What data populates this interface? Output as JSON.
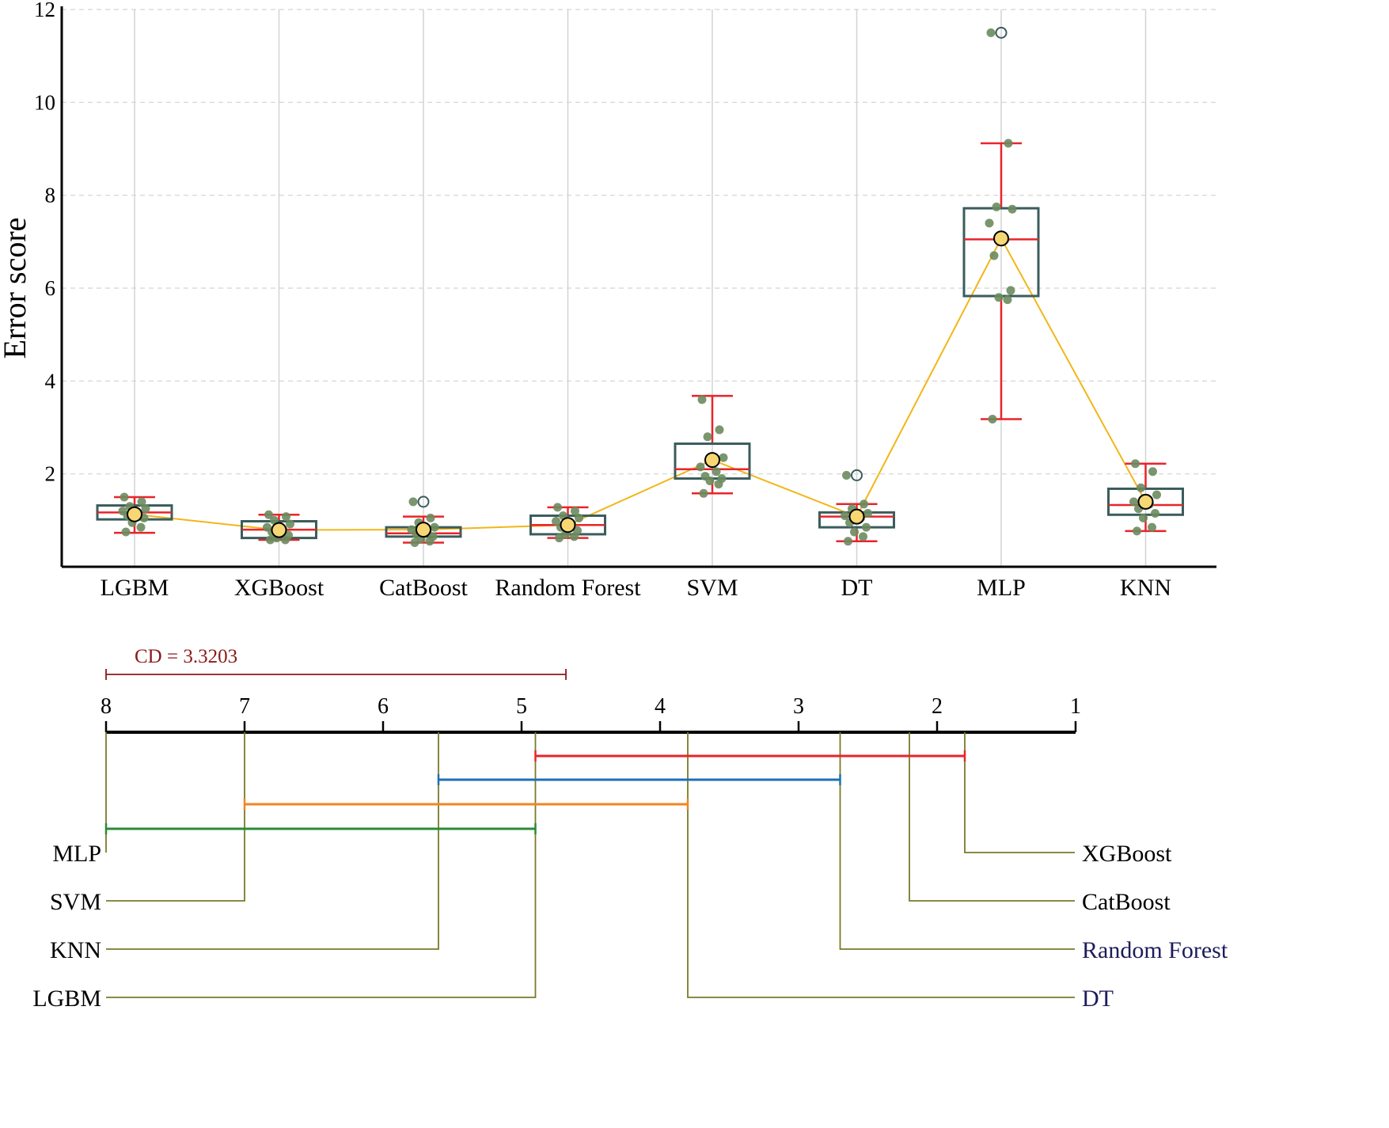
{
  "colors": {
    "box_edge": "#3b5c5c",
    "median": "#e8242a",
    "whisker": "#e8242a",
    "mean_line": "#f2b618",
    "mean_fill": "#f7d774",
    "points": "#6b8b5e",
    "grid": "#d3d3d3",
    "cd": "#8b1a1a",
    "connector": "#7a7a2a",
    "label_dark_blue": "#1c1c5c",
    "groups": [
      "#e8242a",
      "#1f6fb5",
      "#f0861f",
      "#2a8a36"
    ]
  },
  "chart_data": [
    {
      "type": "box",
      "title": "",
      "xlabel": "",
      "ylabel": "Error score",
      "ylim": [
        0,
        12
      ],
      "yticks": [
        2,
        4,
        6,
        8,
        10,
        12
      ],
      "grid": "horizontal dashed, vertical solid",
      "categories": [
        "LGBM",
        "XGBoost",
        "CatBoost",
        "Random Forest",
        "SVM",
        "DT",
        "MLP",
        "KNN"
      ],
      "boxes": [
        {
          "name": "LGBM",
          "q1": 1.02,
          "median": 1.17,
          "q3": 1.32,
          "whisker_low": 0.73,
          "whisker_high": 1.5,
          "mean": 1.13,
          "outliers": [],
          "points": [
            1.5,
            1.4,
            1.3,
            1.25,
            1.2,
            1.15,
            1.1,
            1.05,
            0.95,
            0.85,
            0.75
          ]
        },
        {
          "name": "XGBoost",
          "q1": 0.62,
          "median": 0.8,
          "q3": 0.98,
          "whisker_low": 0.58,
          "whisker_high": 1.12,
          "mean": 0.79,
          "outliers": [],
          "points": [
            1.12,
            1.08,
            1.0,
            0.92,
            0.85,
            0.8,
            0.75,
            0.68,
            0.62,
            0.58,
            0.58
          ]
        },
        {
          "name": "CatBoost",
          "q1": 0.65,
          "median": 0.72,
          "q3": 0.85,
          "whisker_low": 0.52,
          "whisker_high": 1.08,
          "mean": 0.8,
          "outliers": [
            1.4
          ],
          "points": [
            1.4,
            1.05,
            0.95,
            0.85,
            0.8,
            0.75,
            0.7,
            0.65,
            0.6,
            0.55,
            0.52
          ]
        },
        {
          "name": "Random Forest",
          "q1": 0.7,
          "median": 0.9,
          "q3": 1.1,
          "whisker_low": 0.62,
          "whisker_high": 1.28,
          "mean": 0.9,
          "outliers": [],
          "points": [
            1.28,
            1.2,
            1.1,
            1.05,
            0.98,
            0.92,
            0.85,
            0.78,
            0.7,
            0.65,
            0.62
          ]
        },
        {
          "name": "SVM",
          "q1": 1.9,
          "median": 2.1,
          "q3": 2.65,
          "whisker_low": 1.58,
          "whisker_high": 3.68,
          "mean": 2.3,
          "outliers": [],
          "points": [
            3.6,
            2.95,
            2.8,
            2.35,
            2.15,
            2.05,
            1.95,
            1.9,
            1.85,
            1.78,
            1.58
          ]
        },
        {
          "name": "DT",
          "q1": 0.85,
          "median": 1.08,
          "q3": 1.17,
          "whisker_low": 0.55,
          "whisker_high": 1.35,
          "mean": 1.08,
          "outliers": [
            1.97
          ],
          "points": [
            1.97,
            1.35,
            1.25,
            1.15,
            1.1,
            1.05,
            0.95,
            0.85,
            0.75,
            0.65,
            0.55
          ]
        },
        {
          "name": "MLP",
          "q1": 5.83,
          "median": 7.05,
          "q3": 7.72,
          "whisker_low": 3.18,
          "whisker_high": 9.12,
          "mean": 7.07,
          "outliers": [
            11.5
          ],
          "points": [
            11.5,
            9.12,
            7.75,
            7.7,
            7.4,
            7.05,
            6.7,
            5.95,
            5.8,
            5.75,
            3.18
          ]
        },
        {
          "name": "KNN",
          "q1": 1.12,
          "median": 1.33,
          "q3": 1.68,
          "whisker_low": 0.77,
          "whisker_high": 2.22,
          "mean": 1.4,
          "outliers": [],
          "points": [
            2.22,
            2.05,
            1.7,
            1.55,
            1.4,
            1.35,
            1.25,
            1.15,
            1.05,
            0.85,
            0.77
          ]
        }
      ]
    },
    {
      "type": "critical-difference",
      "title": "",
      "cd_label": "CD = 3.3203",
      "cd": 3.3203,
      "axis_range": [
        8,
        1
      ],
      "ticks": [
        "8",
        "7",
        "6",
        "5",
        "4",
        "3",
        "2",
        "1"
      ],
      "left_labels": [
        {
          "name": "MLP",
          "rank": 8.0
        },
        {
          "name": "SVM",
          "rank": 7.0
        },
        {
          "name": "KNN",
          "rank": 5.6
        },
        {
          "name": "LGBM",
          "rank": 4.9
        }
      ],
      "right_labels": [
        {
          "name": "XGBoost",
          "rank": 1.8
        },
        {
          "name": "CatBoost",
          "rank": 2.2
        },
        {
          "name": "Random Forest",
          "rank": 2.7
        },
        {
          "name": "DT",
          "rank": 3.8
        }
      ],
      "groups": [
        {
          "from": 4.9,
          "to": 1.8
        },
        {
          "from": 5.6,
          "to": 2.7
        },
        {
          "from": 7.0,
          "to": 3.8
        },
        {
          "from": 8.0,
          "to": 4.9
        }
      ]
    }
  ]
}
